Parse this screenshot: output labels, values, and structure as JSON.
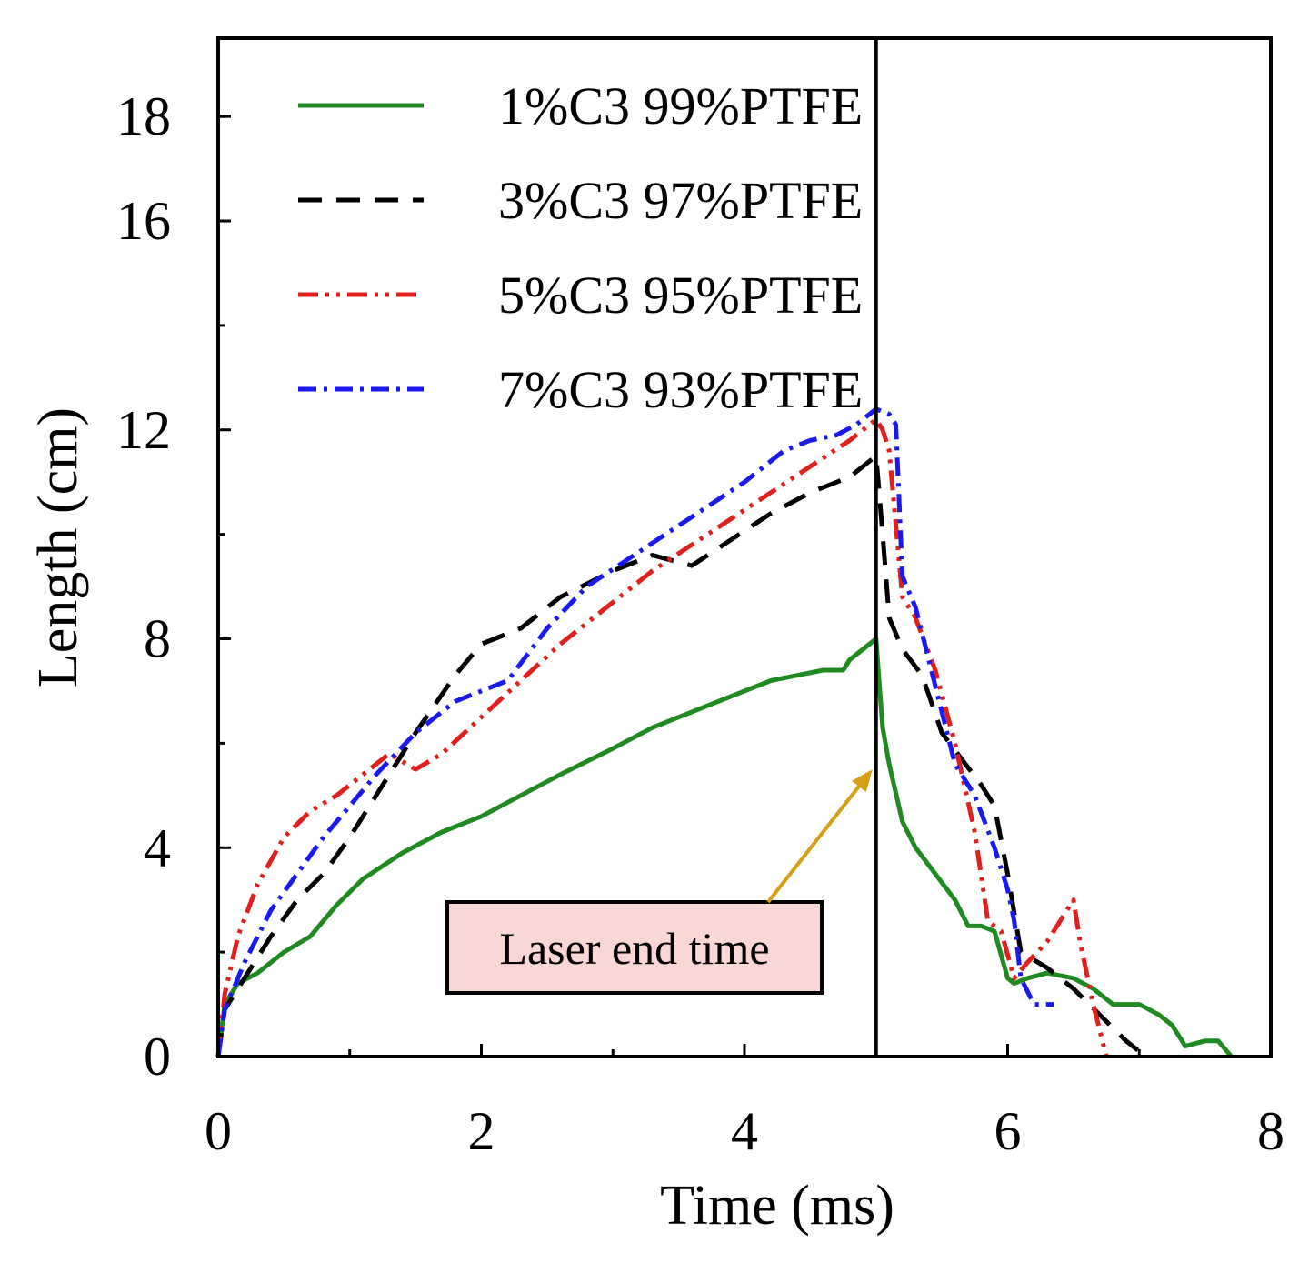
{
  "chart_data": {
    "type": "line",
    "title": "",
    "xlabel": "Time (ms)",
    "ylabel": "Length (cm)",
    "xlim": [
      0,
      8
    ],
    "ylim": [
      0,
      19.5
    ],
    "xticks": [
      0,
      2,
      4,
      6,
      8
    ],
    "yticks": [
      0,
      4,
      8,
      12,
      16,
      18
    ],
    "grid": false,
    "legend_position": "top-left",
    "vline": {
      "x": 5,
      "color": "#000000"
    },
    "annotation": {
      "text": "Laser end time",
      "target_x": 5,
      "target_y": 5.5,
      "box_x": 4.2,
      "box_y": 2.3,
      "box_color": "#f8d7d4",
      "arrow_color": "#d4a017"
    },
    "series": [
      {
        "name": "1%C3 99%PTFE",
        "color": "#1f8a1f",
        "dash": "",
        "x": [
          0,
          0.05,
          0.15,
          0.3,
          0.5,
          0.7,
          0.9,
          1.1,
          1.4,
          1.7,
          2.0,
          2.3,
          2.6,
          3.0,
          3.3,
          3.6,
          3.9,
          4.2,
          4.4,
          4.6,
          4.75,
          4.8,
          4.9,
          5.0,
          5.02,
          5.05,
          5.1,
          5.2,
          5.3,
          5.45,
          5.6,
          5.7,
          5.8,
          5.9,
          6.0,
          6.05,
          6.15,
          6.3,
          6.5,
          6.65,
          6.8,
          7.0,
          7.15,
          7.25,
          7.35,
          7.5,
          7.6,
          7.7
        ],
        "y": [
          0,
          1.0,
          1.4,
          1.6,
          2.0,
          2.3,
          2.9,
          3.4,
          3.9,
          4.3,
          4.6,
          5.0,
          5.4,
          5.9,
          6.3,
          6.6,
          6.9,
          7.2,
          7.3,
          7.4,
          7.4,
          7.6,
          7.8,
          8.0,
          7.3,
          6.3,
          5.6,
          4.5,
          4.0,
          3.5,
          3.0,
          2.5,
          2.5,
          2.4,
          1.5,
          1.4,
          1.5,
          1.6,
          1.5,
          1.3,
          1.0,
          1.0,
          0.8,
          0.6,
          0.2,
          0.3,
          0.3,
          0.0
        ]
      },
      {
        "name": "3%C3 97%PTFE",
        "color": "#000000",
        "dash": "26,16",
        "x": [
          0,
          0.05,
          0.2,
          0.4,
          0.6,
          0.8,
          1.0,
          1.2,
          1.5,
          1.8,
          2.0,
          2.3,
          2.6,
          3.0,
          3.3,
          3.6,
          3.9,
          4.2,
          4.5,
          4.8,
          5.0,
          5.05,
          5.1,
          5.2,
          5.35,
          5.5,
          5.65,
          5.8,
          5.9,
          6.0,
          6.1,
          6.3,
          6.5,
          6.7,
          6.9,
          7.05
        ],
        "y": [
          0,
          0.9,
          1.5,
          2.3,
          3.0,
          3.5,
          4.2,
          5.0,
          6.2,
          7.3,
          7.9,
          8.2,
          8.8,
          9.3,
          9.6,
          9.4,
          9.9,
          10.4,
          10.8,
          11.1,
          11.5,
          10.0,
          8.4,
          7.8,
          7.3,
          6.2,
          5.7,
          5.2,
          4.8,
          3.5,
          2.0,
          1.7,
          1.3,
          0.8,
          0.3,
          0.0
        ]
      },
      {
        "name": "5%C3 95%PTFE",
        "color": "#e0201c",
        "dash": "22,8,4,8,4,8",
        "x": [
          0,
          0.05,
          0.15,
          0.3,
          0.5,
          0.7,
          0.9,
          1.1,
          1.3,
          1.5,
          1.7,
          2.0,
          2.3,
          2.6,
          3.0,
          3.3,
          3.6,
          3.9,
          4.2,
          4.5,
          4.8,
          5.0,
          5.05,
          5.1,
          5.2,
          5.3,
          5.45,
          5.6,
          5.75,
          5.85,
          5.95,
          6.05,
          6.15,
          6.3,
          6.45,
          6.5,
          6.55,
          6.65,
          6.75
        ],
        "y": [
          0,
          1.2,
          2.3,
          3.3,
          4.2,
          4.7,
          5.0,
          5.4,
          5.8,
          5.5,
          5.8,
          6.5,
          7.2,
          7.9,
          8.7,
          9.3,
          9.8,
          10.3,
          10.8,
          11.3,
          11.8,
          12.2,
          12.0,
          11.6,
          8.8,
          8.4,
          7.4,
          6.0,
          4.3,
          2.6,
          2.4,
          1.5,
          1.8,
          2.2,
          2.8,
          3.0,
          2.2,
          1.0,
          0.0
        ]
      },
      {
        "name": "7%C3 93%PTFE",
        "color": "#1a1af0",
        "dash": "20,8,4,8",
        "x": [
          0,
          0.05,
          0.2,
          0.4,
          0.6,
          0.8,
          1.0,
          1.2,
          1.5,
          1.8,
          2.0,
          2.2,
          2.5,
          2.8,
          3.1,
          3.4,
          3.7,
          4.0,
          4.3,
          4.5,
          4.7,
          4.85,
          5.0,
          5.1,
          5.15,
          5.2,
          5.3,
          5.45,
          5.6,
          5.75,
          5.9,
          6.0,
          6.05,
          6.1,
          6.2,
          6.35
        ],
        "y": [
          0,
          0.9,
          1.8,
          2.8,
          3.5,
          4.2,
          4.8,
          5.4,
          6.2,
          6.8,
          7.0,
          7.2,
          8.2,
          9.0,
          9.5,
          10.0,
          10.5,
          11.0,
          11.6,
          11.8,
          11.9,
          12.1,
          12.4,
          12.3,
          12.1,
          9.2,
          8.6,
          7.1,
          5.6,
          5.0,
          4.0,
          3.2,
          2.6,
          1.5,
          1.0,
          1.0
        ]
      }
    ]
  }
}
